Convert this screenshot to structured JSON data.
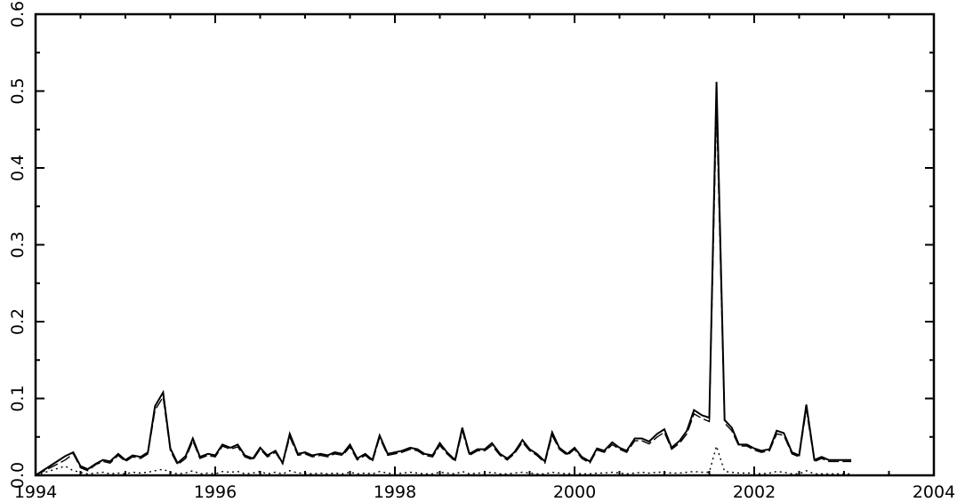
{
  "chart_data": {
    "type": "line",
    "title": "",
    "xlabel": "",
    "ylabel": "",
    "xlim": [
      1994,
      2004
    ],
    "ylim": [
      0,
      0.6
    ],
    "grid": false,
    "legend": "none",
    "x_ticks": [
      "1994",
      "1996",
      "1998",
      "2000",
      "2002",
      "2004"
    ],
    "y_ticks": [
      "0.0",
      "0.1",
      "0.2",
      "0.3",
      "0.4",
      "0.5",
      "0.6"
    ],
    "x": [
      1994.0,
      1994.33,
      1994.42,
      1994.5,
      1994.58,
      1994.67,
      1994.75,
      1994.83,
      1994.92,
      1995.0,
      1995.08,
      1995.17,
      1995.25,
      1995.33,
      1995.42,
      1995.5,
      1995.58,
      1995.67,
      1995.75,
      1995.83,
      1995.92,
      1996.0,
      1996.08,
      1996.17,
      1996.25,
      1996.33,
      1996.42,
      1996.5,
      1996.58,
      1996.67,
      1996.75,
      1996.83,
      1996.92,
      1997.0,
      1997.08,
      1997.17,
      1997.25,
      1997.33,
      1997.42,
      1997.5,
      1997.58,
      1997.67,
      1997.75,
      1997.83,
      1997.92,
      1998.0,
      1998.08,
      1998.17,
      1998.25,
      1998.33,
      1998.42,
      1998.5,
      1998.58,
      1998.67,
      1998.75,
      1998.83,
      1998.92,
      1999.0,
      1999.08,
      1999.17,
      1999.25,
      1999.33,
      1999.42,
      1999.5,
      1999.58,
      1999.67,
      1999.75,
      1999.83,
      1999.92,
      2000.0,
      2000.08,
      2000.17,
      2000.25,
      2000.33,
      2000.42,
      2000.5,
      2000.58,
      2000.67,
      2000.75,
      2000.83,
      2000.92,
      2001.0,
      2001.08,
      2001.17,
      2001.25,
      2001.33,
      2001.42,
      2001.5,
      2001.58,
      2001.67,
      2001.75,
      2001.83,
      2001.92,
      2002.0,
      2002.08,
      2002.17,
      2002.25,
      2002.33,
      2002.42,
      2002.5,
      2002.58,
      2002.67,
      2002.75,
      2002.83,
      2002.92,
      2003.0,
      2003.08
    ],
    "series": [
      {
        "style": "solid",
        "color": "#000000",
        "values": [
          0.0,
          0.025,
          0.03,
          0.012,
          0.008,
          0.015,
          0.02,
          0.018,
          0.028,
          0.02,
          0.026,
          0.024,
          0.03,
          0.09,
          0.108,
          0.035,
          0.016,
          0.025,
          0.048,
          0.024,
          0.028,
          0.026,
          0.04,
          0.036,
          0.04,
          0.026,
          0.022,
          0.036,
          0.026,
          0.032,
          0.016,
          0.054,
          0.028,
          0.03,
          0.026,
          0.028,
          0.026,
          0.03,
          0.028,
          0.04,
          0.022,
          0.028,
          0.02,
          0.052,
          0.028,
          0.03,
          0.032,
          0.036,
          0.034,
          0.028,
          0.026,
          0.042,
          0.03,
          0.02,
          0.062,
          0.028,
          0.034,
          0.034,
          0.042,
          0.028,
          0.022,
          0.03,
          0.046,
          0.034,
          0.028,
          0.018,
          0.056,
          0.036,
          0.028,
          0.036,
          0.024,
          0.018,
          0.035,
          0.032,
          0.043,
          0.036,
          0.032,
          0.048,
          0.048,
          0.044,
          0.054,
          0.06,
          0.036,
          0.045,
          0.058,
          0.085,
          0.078,
          0.075,
          0.512,
          0.072,
          0.062,
          0.04,
          0.04,
          0.035,
          0.032,
          0.034,
          0.058,
          0.055,
          0.03,
          0.026,
          0.092,
          0.02,
          0.024,
          0.02,
          0.02,
          0.02,
          0.02
        ]
      },
      {
        "style": "dashed",
        "color": "#000000",
        "values": [
          0.0,
          0.02,
          0.028,
          0.01,
          0.006,
          0.014,
          0.018,
          0.016,
          0.026,
          0.018,
          0.024,
          0.022,
          0.028,
          0.085,
          0.102,
          0.032,
          0.014,
          0.022,
          0.045,
          0.022,
          0.026,
          0.024,
          0.038,
          0.034,
          0.037,
          0.024,
          0.02,
          0.034,
          0.024,
          0.03,
          0.015,
          0.05,
          0.026,
          0.028,
          0.024,
          0.026,
          0.024,
          0.028,
          0.026,
          0.037,
          0.02,
          0.026,
          0.018,
          0.049,
          0.026,
          0.028,
          0.03,
          0.034,
          0.032,
          0.026,
          0.024,
          0.039,
          0.028,
          0.018,
          0.058,
          0.026,
          0.032,
          0.032,
          0.039,
          0.026,
          0.02,
          0.028,
          0.043,
          0.032,
          0.026,
          0.016,
          0.052,
          0.034,
          0.026,
          0.034,
          0.022,
          0.016,
          0.033,
          0.03,
          0.04,
          0.034,
          0.03,
          0.045,
          0.045,
          0.041,
          0.05,
          0.056,
          0.034,
          0.042,
          0.054,
          0.08,
          0.074,
          0.07,
          0.48,
          0.068,
          0.058,
          0.038,
          0.038,
          0.033,
          0.03,
          0.032,
          0.054,
          0.052,
          0.028,
          0.024,
          0.086,
          0.018,
          0.022,
          0.018,
          0.018,
          0.018,
          0.018
        ]
      },
      {
        "style": "dotted",
        "color": "#000000",
        "values": [
          0.0,
          0.012,
          0.006,
          0.004,
          0.002,
          0.003,
          0.004,
          0.002,
          0.003,
          0.002,
          0.004,
          0.003,
          0.004,
          0.006,
          0.008,
          0.004,
          0.002,
          0.003,
          0.006,
          0.002,
          0.003,
          0.002,
          0.005,
          0.004,
          0.005,
          0.002,
          0.003,
          0.005,
          0.002,
          0.004,
          0.002,
          0.006,
          0.003,
          0.003,
          0.002,
          0.003,
          0.002,
          0.003,
          0.002,
          0.004,
          0.002,
          0.003,
          0.002,
          0.005,
          0.003,
          0.002,
          0.003,
          0.004,
          0.003,
          0.002,
          0.002,
          0.004,
          0.003,
          0.002,
          0.005,
          0.002,
          0.003,
          0.003,
          0.004,
          0.002,
          0.002,
          0.003,
          0.004,
          0.003,
          0.002,
          0.002,
          0.004,
          0.003,
          0.002,
          0.003,
          0.002,
          0.002,
          0.003,
          0.003,
          0.004,
          0.003,
          0.002,
          0.003,
          0.004,
          0.003,
          0.004,
          0.004,
          0.003,
          0.003,
          0.004,
          0.005,
          0.004,
          0.004,
          0.038,
          0.005,
          0.004,
          0.003,
          0.003,
          0.003,
          0.002,
          0.003,
          0.005,
          0.004,
          0.002,
          0.002,
          0.006,
          0.002,
          0.002,
          0.002,
          0.002,
          0.002,
          0.002
        ]
      }
    ]
  }
}
